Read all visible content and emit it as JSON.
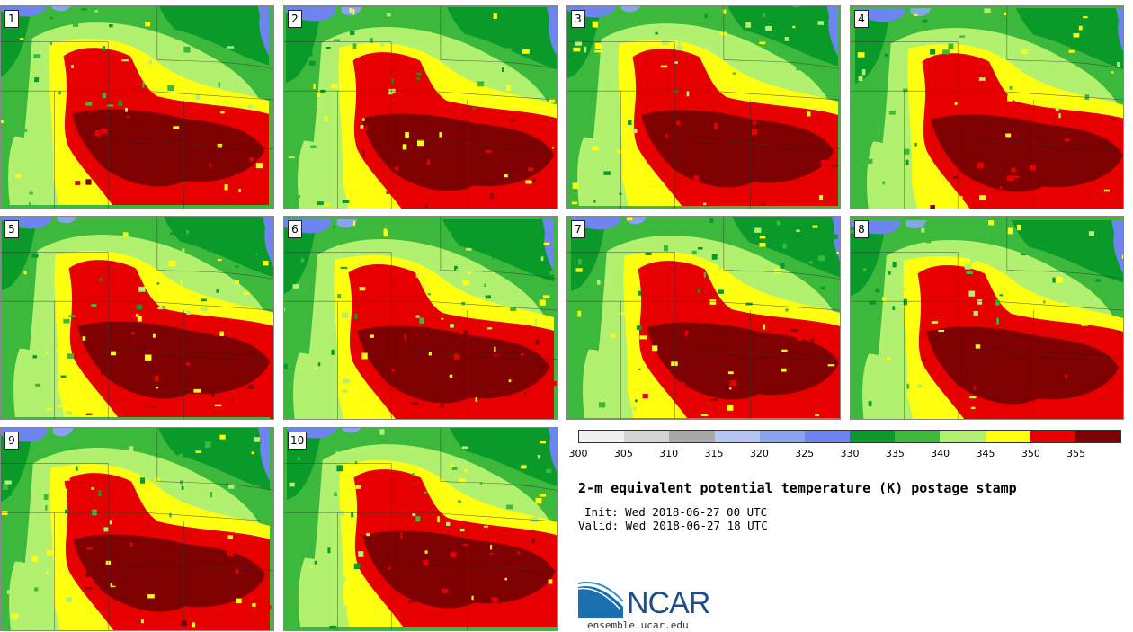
{
  "panels": [
    {
      "label": "1"
    },
    {
      "label": "2"
    },
    {
      "label": "3"
    },
    {
      "label": "4"
    },
    {
      "label": "5"
    },
    {
      "label": "6"
    },
    {
      "label": "7"
    },
    {
      "label": "8"
    },
    {
      "label": "9"
    },
    {
      "label": "10"
    }
  ],
  "colorbar": {
    "ticks": [
      "300",
      "305",
      "310",
      "315",
      "320",
      "325",
      "330",
      "335",
      "340",
      "345",
      "350",
      "355"
    ],
    "colors": [
      "#f0f0f0",
      "#d4d4d4",
      "#a8a8a8",
      "#b7c5f5",
      "#8aa3f0",
      "#6e84ee",
      "#0a9a2a",
      "#3cb83c",
      "#b2f070",
      "#ffff10",
      "#e60000",
      "#7f0000"
    ]
  },
  "title": "2-m equivalent potential temperature (K) postage stamp",
  "init": "Init: Wed 2018-06-27 00 UTC",
  "valid": "Valid: Wed 2018-06-27 18 UTC",
  "logo": {
    "name": "NCAR",
    "url": "ensemble.ucar.edu"
  }
}
